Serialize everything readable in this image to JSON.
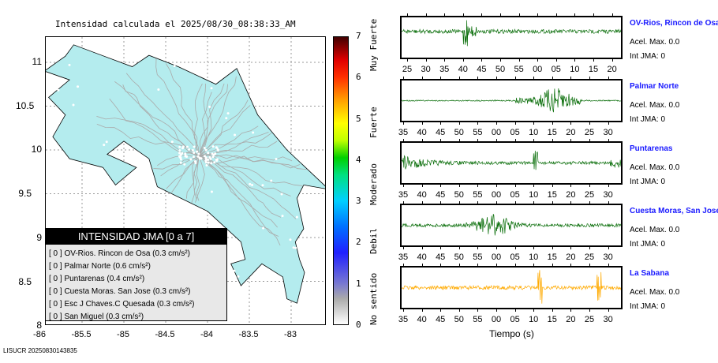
{
  "title": "Intensidad calculada el 2025/08/30_08:38:33_AM",
  "map": {
    "lon_ticks": [
      "-86",
      "-85.5",
      "-85",
      "-84.5",
      "-84",
      "-83.5",
      "-83"
    ],
    "lat_ticks": [
      "11",
      "10.5",
      "10",
      "9.5",
      "9",
      "8.5",
      "8"
    ],
    "land_color": "#b4ecee"
  },
  "colorbar": {
    "labels": [
      "0",
      "1",
      "2",
      "3",
      "4",
      "5",
      "6",
      "7"
    ],
    "categories": [
      "No sentido",
      "Debil",
      "Moderado",
      "Fuerte",
      "Muy Fuerte"
    ]
  },
  "legend": {
    "title": "INTENSIDAD JMA [0 a 7]",
    "items": [
      "[ 0 ]  OV-Rios. Rincon de Osa (0.3 cm/s²)",
      "[ 0 ]  Palmar Norte (0.6 cm/s²)",
      "[ 0 ]  Puntarenas (0.4 cm/s²)",
      "[ 0 ]  Cuesta Moras. San Jose (0.3 cm/s²)",
      "[ 0 ]  Esc J Chaves.C Quesada (0.3 cm/s²)",
      "[ 0 ]  San Miguel (0.3 cm/s²)"
    ]
  },
  "stations": [
    {
      "name": "OV-Rios, Rincon de Osa",
      "acel": "Acel. Max. 0.0",
      "int": "Int JMA: 0",
      "ticks": [
        "25",
        "30",
        "35",
        "40",
        "45",
        "50",
        "55",
        "00",
        "05",
        "10",
        "15",
        "20"
      ],
      "color": "#0a6e0a"
    },
    {
      "name": "Palmar Norte",
      "acel": "Acel. Max. 0.0",
      "int": "Int JMA: 0",
      "ticks": [
        "35",
        "40",
        "45",
        "50",
        "55",
        "00",
        "05",
        "10",
        "15",
        "20",
        "25",
        "30"
      ],
      "color": "#0a6e0a"
    },
    {
      "name": "Puntarenas",
      "acel": "Acel. Max. 0.0",
      "int": "Int JMA: 0",
      "ticks": [
        "35",
        "40",
        "45",
        "50",
        "55",
        "00",
        "05",
        "10",
        "15",
        "20",
        "25",
        "30"
      ],
      "color": "#0a6e0a"
    },
    {
      "name": "Cuesta Moras, San Jose",
      "acel": "Acel. Max. 0.0",
      "int": "Int JMA: 0",
      "ticks": [
        "35",
        "40",
        "45",
        "50",
        "55",
        "00",
        "05",
        "10",
        "15",
        "20",
        "25",
        "30"
      ],
      "color": "#0a6e0a"
    },
    {
      "name": "La Sabana",
      "acel": "Acel. Max. 0.0",
      "int": "Int JMA: 0",
      "ticks": [
        "35",
        "40",
        "45",
        "50",
        "55",
        "00",
        "05",
        "10",
        "15",
        "20",
        "25",
        "30"
      ],
      "color": "#ffaa00"
    }
  ],
  "xlabel": "Tiempo (s)",
  "footer": "LISUCR 20250830143835"
}
